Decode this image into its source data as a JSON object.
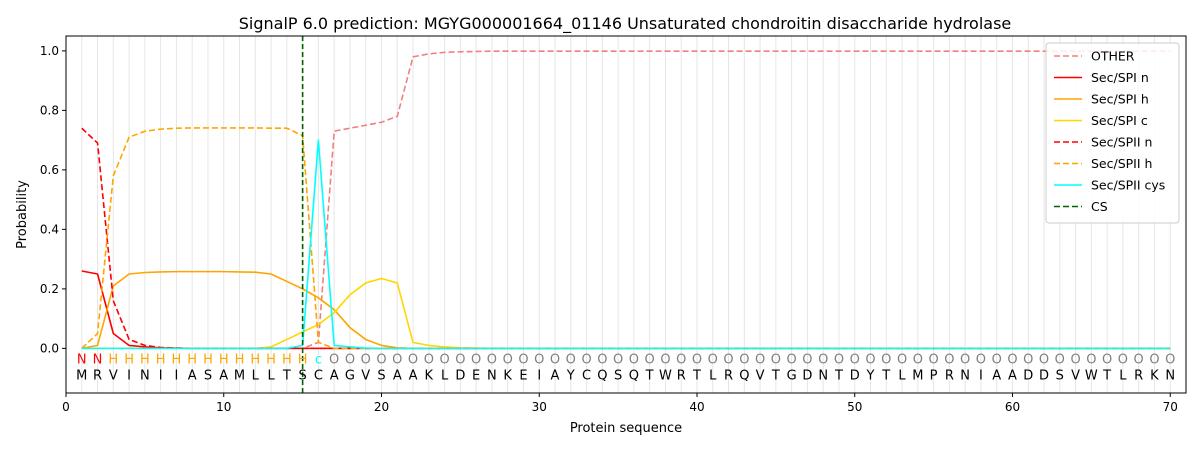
{
  "chart_data": {
    "type": "line",
    "title": "SignalP 6.0 prediction: MGYG000001664_01146 Unsaturated chondroitin disaccharide hydrolase",
    "xlabel": "Protein sequence",
    "ylabel": "Probability",
    "xlim": [
      0,
      71
    ],
    "ylim": [
      -0.15,
      1.05
    ],
    "xticks": [
      "0",
      "10",
      "20",
      "30",
      "40",
      "50",
      "60",
      "70"
    ],
    "yticks": [
      "0.0",
      "0.2",
      "0.4",
      "0.6",
      "0.8",
      "1.0"
    ],
    "grid": "vertical lines at each residue",
    "legend_position": "top-right",
    "sequence": [
      "M",
      "R",
      "V",
      "I",
      "N",
      "I",
      "I",
      "A",
      "S",
      "A",
      "M",
      "L",
      "L",
      "T",
      "S",
      "C",
      "A",
      "G",
      "V",
      "S",
      "A",
      "A",
      "K",
      "L",
      "D",
      "E",
      "N",
      "K",
      "E",
      "I",
      "A",
      "Y",
      "C",
      "Q",
      "S",
      "Q",
      "T",
      "W",
      "R",
      "T",
      "L",
      "R",
      "Q",
      "V",
      "T",
      "G",
      "D",
      "N",
      "T",
      "D",
      "Y",
      "T",
      "L",
      "M",
      "P",
      "R",
      "N",
      "I",
      "A",
      "A",
      "D",
      "D",
      "S",
      "V",
      "W",
      "T",
      "L",
      "R",
      "K",
      "N"
    ],
    "region_labels": [
      "N",
      "N",
      "H",
      "H",
      "H",
      "H",
      "H",
      "H",
      "H",
      "H",
      "H",
      "H",
      "H",
      "H",
      "H",
      "c",
      "O",
      "O",
      "O",
      "O",
      "O",
      "O",
      "O",
      "O",
      "O",
      "O",
      "O",
      "O",
      "O",
      "O",
      "O",
      "O",
      "O",
      "O",
      "O",
      "O",
      "O",
      "O",
      "O",
      "O",
      "O",
      "O",
      "O",
      "O",
      "O",
      "O",
      "O",
      "O",
      "O",
      "O",
      "O",
      "O",
      "O",
      "O",
      "O",
      "O",
      "O",
      "O",
      "O",
      "O",
      "O",
      "O",
      "O",
      "O",
      "O",
      "O",
      "O",
      "O",
      "O",
      "O"
    ],
    "region_colors": {
      "N": "#ff0000",
      "H": "#ffa500",
      "c": "#00ffff",
      "O": "#808080"
    },
    "cleavage_site": 15,
    "series": [
      {
        "name": "OTHER",
        "color": "#f08080",
        "dash": "dashed",
        "values": [
          0.0,
          0.0,
          0.0,
          0.0,
          0.0,
          0.0,
          0.0,
          0.0,
          0.0,
          0.0,
          0.0,
          0.0,
          0.0,
          0.0,
          0.0,
          0.02,
          0.73,
          0.74,
          0.75,
          0.76,
          0.78,
          0.98,
          0.99,
          0.995,
          0.997,
          0.998,
          0.999,
          0.999,
          0.999,
          0.999,
          0.999,
          0.999,
          0.999,
          0.999,
          0.999,
          0.999,
          0.999,
          0.999,
          0.999,
          0.999,
          0.999,
          0.999,
          0.999,
          0.999,
          0.999,
          0.999,
          0.999,
          0.999,
          0.999,
          0.999,
          0.999,
          0.999,
          0.999,
          0.999,
          0.999,
          0.999,
          0.999,
          0.999,
          0.999,
          0.999,
          0.999,
          0.999,
          0.999,
          0.999,
          0.999,
          0.999,
          0.999,
          0.999,
          0.999,
          0.999
        ]
      },
      {
        "name": "Sec/SPI n",
        "color": "#ff0000",
        "dash": "solid",
        "values": [
          0.26,
          0.25,
          0.05,
          0.01,
          0.005,
          0.002,
          0.001,
          0.0,
          0.0,
          0.0,
          0.0,
          0.0,
          0.0,
          0.0,
          0.0,
          0.0,
          0.0,
          0.0,
          0.0,
          0.0,
          0.0,
          0.0,
          0.0,
          0.0,
          0.0,
          0.0,
          0.0,
          0.0,
          0.0,
          0.0,
          0.0,
          0.0,
          0.0,
          0.0,
          0.0,
          0.0,
          0.0,
          0.0,
          0.0,
          0.0,
          0.0,
          0.0,
          0.0,
          0.0,
          0.0,
          0.0,
          0.0,
          0.0,
          0.0,
          0.0,
          0.0,
          0.0,
          0.0,
          0.0,
          0.0,
          0.0,
          0.0,
          0.0,
          0.0,
          0.0,
          0.0,
          0.0,
          0.0,
          0.0,
          0.0,
          0.0,
          0.0,
          0.0,
          0.0,
          0.0
        ]
      },
      {
        "name": "Sec/SPI h",
        "color": "#ffa500",
        "dash": "solid",
        "values": [
          0.0,
          0.01,
          0.21,
          0.25,
          0.255,
          0.257,
          0.258,
          0.258,
          0.258,
          0.258,
          0.257,
          0.256,
          0.25,
          0.225,
          0.2,
          0.17,
          0.13,
          0.07,
          0.03,
          0.01,
          0.002,
          0.0,
          0.0,
          0.0,
          0.0,
          0.0,
          0.0,
          0.0,
          0.0,
          0.0,
          0.0,
          0.0,
          0.0,
          0.0,
          0.0,
          0.0,
          0.0,
          0.0,
          0.0,
          0.0,
          0.0,
          0.0,
          0.0,
          0.0,
          0.0,
          0.0,
          0.0,
          0.0,
          0.0,
          0.0,
          0.0,
          0.0,
          0.0,
          0.0,
          0.0,
          0.0,
          0.0,
          0.0,
          0.0,
          0.0,
          0.0,
          0.0,
          0.0,
          0.0,
          0.0,
          0.0,
          0.0,
          0.0,
          0.0,
          0.0
        ]
      },
      {
        "name": "Sec/SPI c",
        "color": "#ffd700",
        "dash": "solid",
        "values": [
          0.0,
          0.0,
          0.0,
          0.0,
          0.0,
          0.0,
          0.0,
          0.0,
          0.0,
          0.0,
          0.0,
          0.0,
          0.005,
          0.03,
          0.055,
          0.08,
          0.12,
          0.18,
          0.22,
          0.235,
          0.22,
          0.02,
          0.01,
          0.005,
          0.002,
          0.001,
          0.0,
          0.0,
          0.0,
          0.0,
          0.0,
          0.0,
          0.0,
          0.0,
          0.0,
          0.0,
          0.0,
          0.0,
          0.0,
          0.0,
          0.0,
          0.0,
          0.0,
          0.0,
          0.0,
          0.0,
          0.0,
          0.0,
          0.0,
          0.0,
          0.0,
          0.0,
          0.0,
          0.0,
          0.0,
          0.0,
          0.0,
          0.0,
          0.0,
          0.0,
          0.0,
          0.0,
          0.0,
          0.0,
          0.0,
          0.0,
          0.0,
          0.0,
          0.0,
          0.0
        ]
      },
      {
        "name": "Sec/SPII n",
        "color": "#ff0000",
        "dash": "dashed",
        "values": [
          0.74,
          0.69,
          0.16,
          0.03,
          0.01,
          0.003,
          0.001,
          0.0,
          0.0,
          0.0,
          0.0,
          0.0,
          0.0,
          0.0,
          0.0,
          0.0,
          0.0,
          0.0,
          0.0,
          0.0,
          0.0,
          0.0,
          0.0,
          0.0,
          0.0,
          0.0,
          0.0,
          0.0,
          0.0,
          0.0,
          0.0,
          0.0,
          0.0,
          0.0,
          0.0,
          0.0,
          0.0,
          0.0,
          0.0,
          0.0,
          0.0,
          0.0,
          0.0,
          0.0,
          0.0,
          0.0,
          0.0,
          0.0,
          0.0,
          0.0,
          0.0,
          0.0,
          0.0,
          0.0,
          0.0,
          0.0,
          0.0,
          0.0,
          0.0,
          0.0,
          0.0,
          0.0,
          0.0,
          0.0,
          0.0,
          0.0,
          0.0,
          0.0,
          0.0,
          0.0
        ]
      },
      {
        "name": "Sec/SPII h",
        "color": "#ffa500",
        "dash": "dashed",
        "values": [
          0.0,
          0.05,
          0.58,
          0.71,
          0.73,
          0.737,
          0.74,
          0.741,
          0.741,
          0.741,
          0.741,
          0.741,
          0.74,
          0.74,
          0.715,
          0.02,
          0.0,
          0.0,
          0.0,
          0.0,
          0.0,
          0.0,
          0.0,
          0.0,
          0.0,
          0.0,
          0.0,
          0.0,
          0.0,
          0.0,
          0.0,
          0.0,
          0.0,
          0.0,
          0.0,
          0.0,
          0.0,
          0.0,
          0.0,
          0.0,
          0.0,
          0.0,
          0.0,
          0.0,
          0.0,
          0.0,
          0.0,
          0.0,
          0.0,
          0.0,
          0.0,
          0.0,
          0.0,
          0.0,
          0.0,
          0.0,
          0.0,
          0.0,
          0.0,
          0.0,
          0.0,
          0.0,
          0.0,
          0.0,
          0.0,
          0.0,
          0.0,
          0.0,
          0.0,
          0.0
        ]
      },
      {
        "name": "Sec/SPII cys",
        "color": "#00ffff",
        "dash": "solid",
        "values": [
          0.0,
          0.0,
          0.0,
          0.0,
          0.0,
          0.0,
          0.0,
          0.0,
          0.0,
          0.0,
          0.0,
          0.0,
          0.0,
          0.0,
          0.01,
          0.7,
          0.01,
          0.005,
          0.001,
          0.0,
          0.0,
          0.0,
          0.0,
          0.0,
          0.0,
          0.0,
          0.0,
          0.0,
          0.0,
          0.0,
          0.0,
          0.0,
          0.0,
          0.0,
          0.0,
          0.0,
          0.0,
          0.0,
          0.0,
          0.0,
          0.0,
          0.0,
          0.0,
          0.0,
          0.0,
          0.0,
          0.0,
          0.0,
          0.0,
          0.0,
          0.0,
          0.0,
          0.0,
          0.0,
          0.0,
          0.0,
          0.0,
          0.0,
          0.0,
          0.0,
          0.0,
          0.0,
          0.0,
          0.0,
          0.0,
          0.0,
          0.0,
          0.0,
          0.0,
          0.0
        ]
      }
    ],
    "cs_legend": {
      "name": "CS",
      "color": "#006400",
      "dash": "dashed"
    }
  }
}
